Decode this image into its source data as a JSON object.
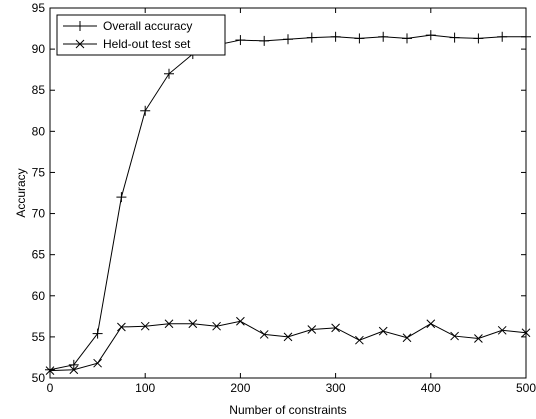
{
  "chart_data": {
    "type": "line",
    "title": "",
    "xlabel": "Number of constraints",
    "ylabel": "Accuracy",
    "xlim": [
      0,
      500
    ],
    "ylim": [
      50,
      95
    ],
    "xticks": [
      0,
      100,
      200,
      300,
      400,
      500
    ],
    "yticks": [
      50,
      55,
      60,
      65,
      70,
      75,
      80,
      85,
      90,
      95
    ],
    "grid": false,
    "legend_position": "top-left",
    "x": [
      0,
      25,
      50,
      75,
      100,
      125,
      150,
      175,
      200,
      225,
      250,
      275,
      300,
      325,
      350,
      375,
      400,
      425,
      450,
      475,
      500
    ],
    "series": [
      {
        "name": "Overall accuracy",
        "marker": "plus",
        "color": "#000000",
        "values": [
          51.0,
          51.6,
          55.4,
          72.0,
          82.5,
          87.0,
          89.4,
          90.5,
          91.1,
          91.0,
          91.2,
          91.4,
          91.5,
          91.3,
          91.5,
          91.3,
          91.7,
          91.4,
          91.3,
          91.5,
          91.5
        ]
      },
      {
        "name": "Held-out test set",
        "marker": "x",
        "color": "#000000",
        "values": [
          50.9,
          51.0,
          51.8,
          56.2,
          56.3,
          56.6,
          56.6,
          56.3,
          56.9,
          55.3,
          55.0,
          55.9,
          56.1,
          54.6,
          55.7,
          54.9,
          56.6,
          55.1,
          54.8,
          55.8,
          55.5
        ]
      }
    ]
  }
}
